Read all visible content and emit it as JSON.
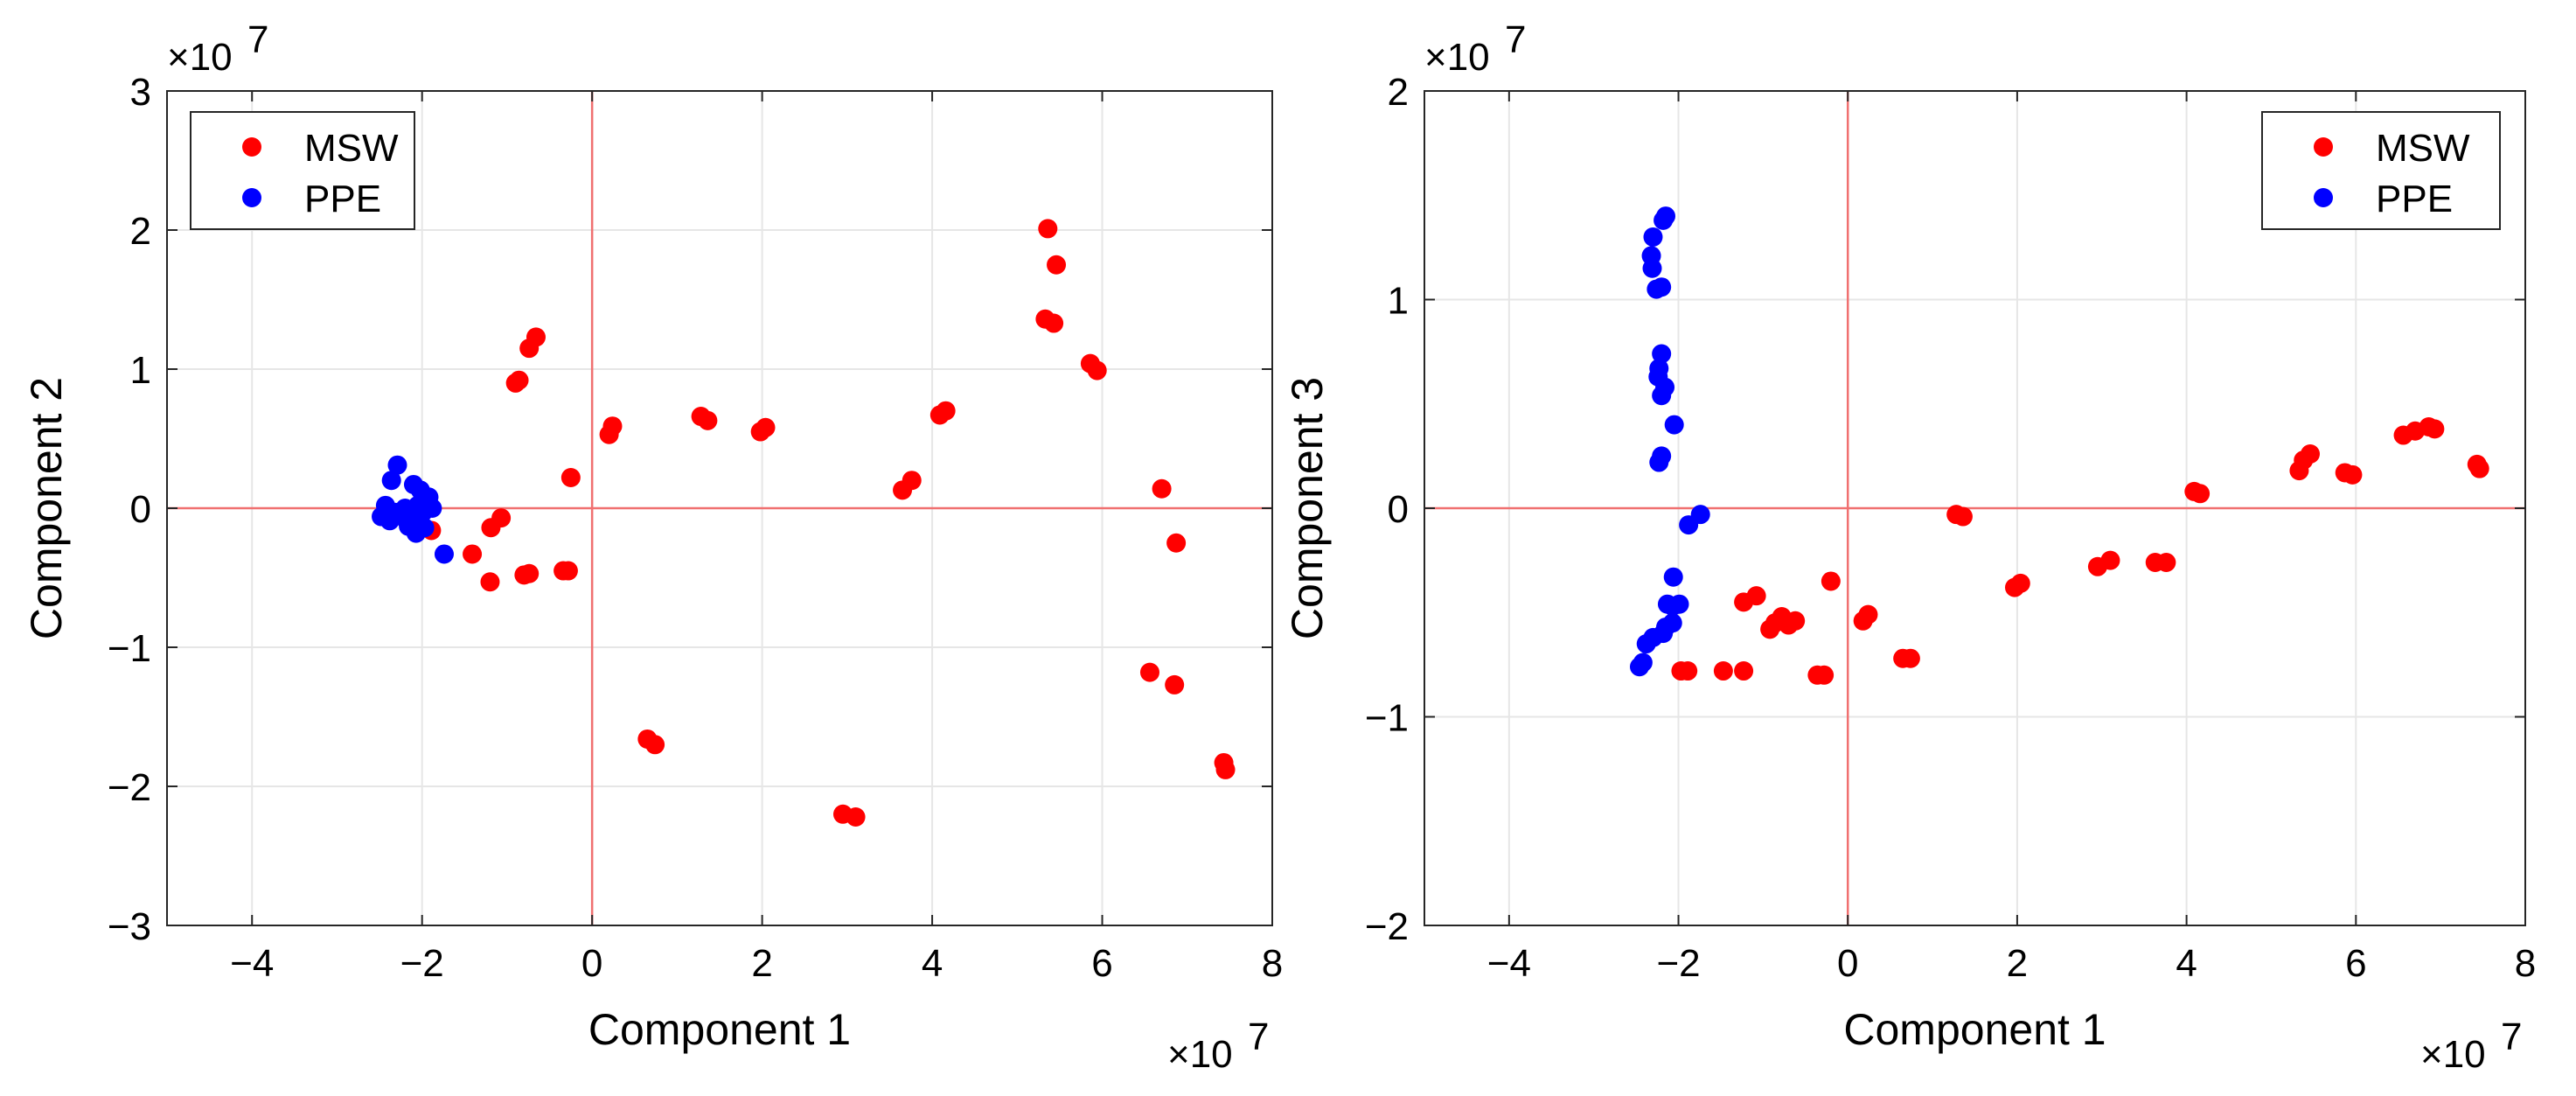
{
  "colors": {
    "MSW": "#ff0000",
    "PPE": "#0000ff",
    "zero_line": "#f07070",
    "grid": "#e6e6e6"
  },
  "chart_data": [
    {
      "type": "scatter",
      "title": "",
      "xlabel": "Component 1",
      "ylabel": "Component 2",
      "x_multiplier": "×10",
      "x_exponent": "7",
      "y_multiplier": "×10",
      "y_exponent": "7",
      "xlim": [
        -50000000,
        80000000
      ],
      "ylim": [
        -30000000,
        30000000
      ],
      "xticks": [
        -40000000,
        -20000000,
        0,
        20000000,
        40000000,
        60000000,
        80000000
      ],
      "xtick_labels": [
        "−4",
        "−2",
        "0",
        "2",
        "4",
        "6",
        "8"
      ],
      "yticks": [
        -30000000,
        -20000000,
        -10000000,
        0,
        10000000,
        20000000,
        30000000
      ],
      "ytick_labels": [
        "−3",
        "−2",
        "−1",
        "0",
        "1",
        "2",
        "3"
      ],
      "grid": true,
      "legend_position": "top-left",
      "series": [
        {
          "name": "MSW",
          "color": "#ff0000",
          "points": [
            [
              -9000000,
              9000000
            ],
            [
              -8600000,
              9200000
            ],
            [
              -7400000,
              11500000
            ],
            [
              -6600000,
              12300000
            ],
            [
              -2500000,
              2200000
            ],
            [
              2000000,
              5300000
            ],
            [
              2400000,
              5900000
            ],
            [
              12800000,
              6600000
            ],
            [
              13600000,
              6300000
            ],
            [
              19800000,
              5500000
            ],
            [
              20400000,
              5800000
            ],
            [
              36500000,
              1300000
            ],
            [
              37600000,
              2000000
            ],
            [
              40900000,
              6700000
            ],
            [
              41600000,
              7000000
            ],
            [
              53600000,
              20100000
            ],
            [
              54600000,
              17500000
            ],
            [
              53300000,
              13600000
            ],
            [
              54300000,
              13300000
            ],
            [
              58600000,
              10400000
            ],
            [
              59400000,
              9900000
            ],
            [
              67000000,
              1400000
            ],
            [
              68700000,
              -2500000
            ],
            [
              65600000,
              -11800000
            ],
            [
              68500000,
              -12700000
            ],
            [
              74300000,
              -18300000
            ],
            [
              74500000,
              -18800000
            ],
            [
              6500000,
              -16600000
            ],
            [
              7400000,
              -17000000
            ],
            [
              29500000,
              -22000000
            ],
            [
              31000000,
              -22200000
            ],
            [
              -3400000,
              -4500000
            ],
            [
              -2800000,
              -4500000
            ],
            [
              -8000000,
              -4800000
            ],
            [
              -7400000,
              -4700000
            ],
            [
              -12000000,
              -5300000
            ],
            [
              -11900000,
              -1400000
            ],
            [
              -10700000,
              -700000
            ],
            [
              -14100000,
              -3300000
            ],
            [
              -18900000,
              -1600000
            ]
          ]
        },
        {
          "name": "PPE",
          "color": "#0000ff",
          "points": [
            [
              -23600000,
              2000000
            ],
            [
              -22900000,
              3100000
            ],
            [
              -21000000,
              1700000
            ],
            [
              -20200000,
              1300000
            ],
            [
              -19800000,
              400000
            ],
            [
              -19200000,
              800000
            ],
            [
              -24300000,
              200000
            ],
            [
              -23200000,
              -300000
            ],
            [
              -22000000,
              0
            ],
            [
              -21200000,
              -700000
            ],
            [
              -20500000,
              200000
            ],
            [
              -24800000,
              -600000
            ],
            [
              -23800000,
              -900000
            ],
            [
              -22600000,
              -400000
            ],
            [
              -21600000,
              -1300000
            ],
            [
              -20900000,
              -300000
            ],
            [
              -19900000,
              -300000
            ],
            [
              -18800000,
              0
            ],
            [
              -19700000,
              -1400000
            ],
            [
              -21900000,
              -800000
            ],
            [
              -20700000,
              -1800000
            ],
            [
              -17400000,
              -3300000
            ]
          ]
        }
      ]
    },
    {
      "type": "scatter",
      "title": "",
      "xlabel": "Component 1",
      "ylabel": "Component 3",
      "x_multiplier": "×10",
      "x_exponent": "7",
      "y_multiplier": "×10",
      "y_exponent": "7",
      "xlim": [
        -50000000,
        80000000
      ],
      "ylim": [
        -20000000,
        20000000
      ],
      "xticks": [
        -40000000,
        -20000000,
        0,
        20000000,
        40000000,
        60000000,
        80000000
      ],
      "xtick_labels": [
        "−4",
        "−2",
        "0",
        "2",
        "4",
        "6",
        "8"
      ],
      "yticks": [
        -20000000,
        -10000000,
        0,
        10000000,
        20000000
      ],
      "ytick_labels": [
        "−2",
        "−1",
        "0",
        "1",
        "2"
      ],
      "grid": true,
      "legend_position": "top-right",
      "series": [
        {
          "name": "MSW",
          "color": "#ff0000",
          "points": [
            [
              -19700000,
              -7800000
            ],
            [
              -18900000,
              -7800000
            ],
            [
              -14700000,
              -7800000
            ],
            [
              -12300000,
              -7800000
            ],
            [
              -12300000,
              -4500000
            ],
            [
              -10800000,
              -4200000
            ],
            [
              -9200000,
              -5800000
            ],
            [
              -8600000,
              -5500000
            ],
            [
              -7800000,
              -5200000
            ],
            [
              -7000000,
              -5600000
            ],
            [
              -6200000,
              -5400000
            ],
            [
              -3600000,
              -8000000
            ],
            [
              -2800000,
              -8000000
            ],
            [
              -2000000,
              -3500000
            ],
            [
              1800000,
              -5400000
            ],
            [
              2400000,
              -5100000
            ],
            [
              6500000,
              -7200000
            ],
            [
              7400000,
              -7200000
            ],
            [
              12800000,
              -300000
            ],
            [
              13600000,
              -400000
            ],
            [
              19700000,
              -3800000
            ],
            [
              20400000,
              -3600000
            ],
            [
              29500000,
              -2800000
            ],
            [
              31000000,
              -2500000
            ],
            [
              36300000,
              -2600000
            ],
            [
              37600000,
              -2600000
            ],
            [
              40900000,
              800000
            ],
            [
              41600000,
              700000
            ],
            [
              53300000,
              1800000
            ],
            [
              53800000,
              2300000
            ],
            [
              54600000,
              2600000
            ],
            [
              58700000,
              1700000
            ],
            [
              59600000,
              1600000
            ],
            [
              65600000,
              3500000
            ],
            [
              67000000,
              3700000
            ],
            [
              68600000,
              3900000
            ],
            [
              69300000,
              3800000
            ],
            [
              74300000,
              2100000
            ],
            [
              74600000,
              1900000
            ]
          ]
        },
        {
          "name": "PPE",
          "color": "#0000ff",
          "points": [
            [
              -21500000,
              14000000
            ],
            [
              -21800000,
              13800000
            ],
            [
              -23000000,
              13000000
            ],
            [
              -23200000,
              12100000
            ],
            [
              -23100000,
              11500000
            ],
            [
              -22600000,
              10500000
            ],
            [
              -22000000,
              10600000
            ],
            [
              -22000000,
              7400000
            ],
            [
              -22300000,
              6700000
            ],
            [
              -22400000,
              6300000
            ],
            [
              -21600000,
              5800000
            ],
            [
              -22000000,
              5400000
            ],
            [
              -20500000,
              4000000
            ],
            [
              -22000000,
              2500000
            ],
            [
              -22300000,
              2200000
            ],
            [
              -18800000,
              -800000
            ],
            [
              -17400000,
              -300000
            ],
            [
              -20600000,
              -3300000
            ],
            [
              -21300000,
              -4600000
            ],
            [
              -20700000,
              -4700000
            ],
            [
              -19900000,
              -4600000
            ],
            [
              -21500000,
              -5700000
            ],
            [
              -20700000,
              -5500000
            ],
            [
              -21800000,
              -6000000
            ],
            [
              -23000000,
              -6200000
            ],
            [
              -23800000,
              -6500000
            ],
            [
              -24200000,
              -7400000
            ],
            [
              -24600000,
              -7600000
            ]
          ]
        }
      ]
    }
  ]
}
